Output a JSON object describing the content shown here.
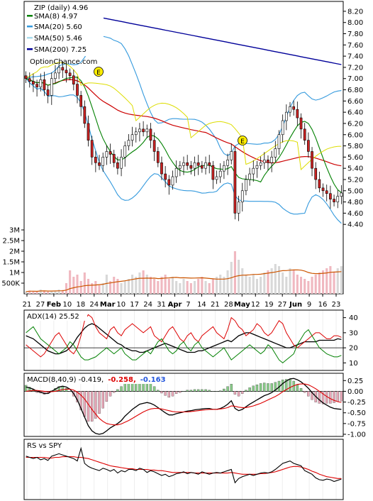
{
  "chart_data": [
    {
      "type": "candlestick",
      "panel": "price",
      "title": "ZIP (daily) 4.96",
      "watermark": "OptionChance.com",
      "ylim": [
        4.2,
        8.3
      ],
      "y_ticks": [
        "8.20",
        "8.00",
        "7.80",
        "7.60",
        "7.40",
        "7.20",
        "7.00",
        "6.80",
        "6.60",
        "6.40",
        "6.20",
        "6.00",
        "5.80",
        "5.60",
        "5.40",
        "5.20",
        "5.00",
        "4.80",
        "4.60",
        "4.40"
      ],
      "legend": [
        {
          "label": "SMA(8) 4.97",
          "color": "#008000"
        },
        {
          "label": "SMA(20) 5.60",
          "color": "#3399dd"
        },
        {
          "label": "SMA(50) 5.46",
          "color": "#aaddee"
        },
        {
          "label": "SMA(200) 7.25",
          "color": "#000099"
        }
      ],
      "earnings_markers": [
        "E",
        "E"
      ],
      "close": [
        7.0,
        6.95,
        6.9,
        6.85,
        6.98,
        6.8,
        6.7,
        7.0,
        7.1,
        7.2,
        7.15,
        7.1,
        7.05,
        6.9,
        6.7,
        6.5,
        6.2,
        5.9,
        5.6,
        5.5,
        5.45,
        5.6,
        5.7,
        5.65,
        5.5,
        5.4,
        5.6,
        5.8,
        5.9,
        6.0,
        6.05,
        6.1,
        6.05,
        6.1,
        5.9,
        5.7,
        5.5,
        5.3,
        5.2,
        5.1,
        5.25,
        5.4,
        5.45,
        5.5,
        5.45,
        5.4,
        5.5,
        5.45,
        5.4,
        5.5,
        5.45,
        5.2,
        5.25,
        5.35,
        5.45,
        5.55,
        5.7,
        4.6,
        4.8,
        5.0,
        5.2,
        5.3,
        5.4,
        5.45,
        5.5,
        5.55,
        5.5,
        5.6,
        5.75,
        6.0,
        6.25,
        6.4,
        6.5,
        6.45,
        6.3,
        6.1,
        5.9,
        5.7,
        5.4,
        5.2,
        5.05,
        5.0,
        4.95,
        4.85,
        4.8,
        4.9,
        4.96
      ]
    },
    {
      "type": "bar",
      "panel": "volume",
      "y_ticks": [
        "3M",
        "2.5M",
        "2M",
        "1.5M",
        "1M",
        "500K"
      ],
      "ylim": [
        0,
        3.2
      ],
      "values": [
        0.1,
        0.15,
        0.12,
        0.1,
        0.2,
        0.15,
        0.1,
        0.12,
        0.15,
        0.2,
        0.18,
        0.5,
        1.1,
        0.8,
        0.9,
        0.6,
        1.0,
        0.7,
        0.5,
        0.6,
        0.4,
        0.5,
        0.9,
        0.6,
        0.8,
        0.7,
        0.5,
        0.6,
        0.7,
        0.9,
        0.8,
        1.0,
        1.1,
        0.9,
        0.8,
        0.7,
        0.6,
        0.8,
        0.9,
        0.7,
        0.8,
        0.6,
        0.5,
        0.7,
        0.6,
        0.5,
        0.6,
        0.7,
        0.8,
        0.6,
        0.5,
        0.7,
        0.8,
        0.9,
        0.8,
        1.1,
        1.5,
        2.0,
        1.6,
        1.2,
        0.9,
        0.8,
        0.9,
        0.7,
        0.8,
        1.0,
        1.1,
        1.2,
        1.4,
        1.3,
        1.0,
        0.8,
        1.2,
        1.1,
        0.9,
        0.8,
        0.7,
        0.6,
        0.8,
        0.9,
        1.0,
        1.1,
        1.2,
        1.3,
        1.0,
        1.2,
        1.3
      ],
      "avg_line_color": "#cc5500"
    },
    {
      "type": "line",
      "panel": "adx",
      "label": "ADX(14) 25.52",
      "y_ticks": [
        "40",
        "30",
        "20",
        "10"
      ],
      "ylim": [
        5,
        45
      ],
      "series": [
        {
          "color": "#000000",
          "values": [
            28,
            27,
            26,
            24,
            22,
            20,
            18,
            17,
            16,
            16,
            17,
            18,
            20,
            23,
            27,
            30,
            33,
            35,
            36,
            35,
            33,
            31,
            29,
            27,
            25,
            23,
            22,
            20,
            19,
            18,
            18,
            17,
            17,
            18,
            19,
            20,
            21,
            22,
            23,
            22,
            21,
            20,
            19,
            18,
            17,
            17,
            17,
            18,
            18,
            19,
            20,
            21,
            22,
            23,
            24,
            25,
            24,
            26,
            28,
            29,
            30,
            30,
            29,
            28,
            27,
            26,
            25,
            24,
            23,
            22,
            21,
            20,
            20,
            21,
            22,
            23,
            24,
            24,
            24,
            24,
            25,
            25,
            25,
            25,
            25,
            26,
            25.5
          ]
        },
        {
          "color": "#dd0000",
          "values": [
            22,
            20,
            18,
            16,
            14,
            16,
            20,
            24,
            28,
            30,
            26,
            22,
            18,
            16,
            20,
            28,
            38,
            42,
            40,
            34,
            30,
            28,
            26,
            32,
            34,
            30,
            28,
            32,
            34,
            36,
            34,
            32,
            30,
            32,
            34,
            28,
            26,
            24,
            28,
            32,
            34,
            30,
            26,
            24,
            28,
            30,
            26,
            24,
            28,
            30,
            32,
            34,
            30,
            28,
            26,
            32,
            40,
            38,
            34,
            32,
            28,
            30,
            32,
            36,
            34,
            30,
            28,
            30,
            34,
            38,
            36,
            30,
            26,
            22,
            20,
            22,
            24,
            26,
            28,
            30,
            30,
            28,
            26,
            26,
            28,
            28,
            27
          ]
        },
        {
          "color": "#008000",
          "values": [
            30,
            32,
            34,
            30,
            26,
            24,
            22,
            20,
            18,
            16,
            18,
            20,
            24,
            22,
            18,
            14,
            12,
            12,
            13,
            14,
            16,
            18,
            20,
            18,
            16,
            18,
            20,
            16,
            14,
            12,
            12,
            14,
            16,
            18,
            16,
            20,
            24,
            26,
            22,
            18,
            16,
            18,
            22,
            24,
            20,
            18,
            22,
            24,
            20,
            18,
            16,
            14,
            16,
            18,
            20,
            16,
            12,
            14,
            16,
            18,
            20,
            22,
            20,
            18,
            16,
            18,
            22,
            20,
            16,
            12,
            10,
            12,
            14,
            16,
            22,
            26,
            30,
            32,
            28,
            24,
            20,
            18,
            16,
            15,
            14,
            14,
            15
          ]
        }
      ]
    },
    {
      "type": "line",
      "panel": "macd",
      "label_prefix": "MACD(8,40,9) -0.419,",
      "label_signal": "-0.258,",
      "label_hist": "-0.163",
      "y_ticks": [
        "0.25",
        "0.00",
        "-0.25",
        "-0.50",
        "-0.75",
        "-1.00"
      ],
      "ylim": [
        -1.05,
        0.42
      ],
      "macd": [
        0.1,
        0.08,
        0.05,
        0.0,
        -0.02,
        -0.05,
        -0.05,
        0.0,
        0.05,
        0.1,
        0.12,
        0.1,
        0.05,
        -0.05,
        -0.2,
        -0.4,
        -0.6,
        -0.8,
        -0.92,
        -0.98,
        -1.0,
        -0.98,
        -0.92,
        -0.85,
        -0.8,
        -0.75,
        -0.68,
        -0.58,
        -0.5,
        -0.42,
        -0.36,
        -0.3,
        -0.28,
        -0.26,
        -0.28,
        -0.32,
        -0.38,
        -0.44,
        -0.5,
        -0.55,
        -0.55,
        -0.52,
        -0.5,
        -0.48,
        -0.46,
        -0.45,
        -0.43,
        -0.42,
        -0.41,
        -0.4,
        -0.4,
        -0.42,
        -0.42,
        -0.4,
        -0.36,
        -0.3,
        -0.22,
        -0.4,
        -0.45,
        -0.42,
        -0.36,
        -0.3,
        -0.25,
        -0.2,
        -0.15,
        -0.1,
        -0.07,
        -0.03,
        0.03,
        0.1,
        0.18,
        0.24,
        0.29,
        0.3,
        0.27,
        0.22,
        0.15,
        0.07,
        -0.03,
        -0.12,
        -0.2,
        -0.27,
        -0.32,
        -0.37,
        -0.4,
        -0.41,
        -0.419
      ],
      "signal": [
        0.0,
        0.01,
        0.02,
        0.02,
        0.01,
        0.0,
        -0.01,
        -0.01,
        0.0,
        0.02,
        0.04,
        0.05,
        0.05,
        0.03,
        -0.02,
        -0.09,
        -0.18,
        -0.3,
        -0.42,
        -0.53,
        -0.63,
        -0.7,
        -0.75,
        -0.77,
        -0.78,
        -0.78,
        -0.76,
        -0.72,
        -0.68,
        -0.63,
        -0.58,
        -0.53,
        -0.48,
        -0.44,
        -0.41,
        -0.4,
        -0.4,
        -0.41,
        -0.43,
        -0.45,
        -0.47,
        -0.48,
        -0.48,
        -0.48,
        -0.48,
        -0.47,
        -0.46,
        -0.45,
        -0.44,
        -0.43,
        -0.42,
        -0.42,
        -0.42,
        -0.41,
        -0.4,
        -0.38,
        -0.34,
        -0.35,
        -0.37,
        -0.38,
        -0.38,
        -0.36,
        -0.34,
        -0.31,
        -0.28,
        -0.24,
        -0.2,
        -0.16,
        -0.12,
        -0.07,
        -0.01,
        0.04,
        0.09,
        0.13,
        0.16,
        0.17,
        0.17,
        0.15,
        0.11,
        0.06,
        0.0,
        -0.06,
        -0.12,
        -0.17,
        -0.21,
        -0.24,
        -0.258
      ]
    },
    {
      "type": "line",
      "panel": "rs",
      "label": "RS vs SPY",
      "ylim": [
        0.0,
        1.0
      ],
      "rs": [
        0.72,
        0.7,
        0.68,
        0.7,
        0.66,
        0.68,
        0.65,
        0.72,
        0.74,
        0.76,
        0.74,
        0.72,
        0.7,
        0.68,
        0.64,
        0.85,
        0.6,
        0.55,
        0.52,
        0.5,
        0.48,
        0.52,
        0.5,
        0.47,
        0.5,
        0.44,
        0.48,
        0.46,
        0.5,
        0.5,
        0.48,
        0.52,
        0.5,
        0.45,
        0.48,
        0.46,
        0.43,
        0.4,
        0.42,
        0.38,
        0.4,
        0.43,
        0.44,
        0.46,
        0.43,
        0.45,
        0.44,
        0.42,
        0.46,
        0.44,
        0.42,
        0.44,
        0.45,
        0.44,
        0.46,
        0.48,
        0.5,
        0.28,
        0.35,
        0.38,
        0.4,
        0.42,
        0.4,
        0.42,
        0.44,
        0.45,
        0.44,
        0.46,
        0.5,
        0.55,
        0.6,
        0.62,
        0.64,
        0.6,
        0.58,
        0.56,
        0.48,
        0.45,
        0.42,
        0.36,
        0.33,
        0.32,
        0.34,
        0.33,
        0.3,
        0.32,
        0.34
      ],
      "rs_ma": [
        0.7,
        0.7,
        0.7,
        0.7,
        0.7,
        0.7,
        0.69,
        0.69,
        0.7,
        0.7,
        0.71,
        0.71,
        0.71,
        0.71,
        0.7,
        0.7,
        0.69,
        0.68,
        0.66,
        0.64,
        0.62,
        0.6,
        0.58,
        0.56,
        0.55,
        0.54,
        0.53,
        0.52,
        0.51,
        0.51,
        0.5,
        0.5,
        0.5,
        0.5,
        0.49,
        0.49,
        0.48,
        0.48,
        0.47,
        0.46,
        0.45,
        0.45,
        0.45,
        0.45,
        0.45,
        0.45,
        0.44,
        0.44,
        0.44,
        0.44,
        0.44,
        0.44,
        0.44,
        0.44,
        0.44,
        0.44,
        0.45,
        0.44,
        0.43,
        0.42,
        0.42,
        0.42,
        0.42,
        0.42,
        0.43,
        0.43,
        0.44,
        0.45,
        0.46,
        0.48,
        0.5,
        0.52,
        0.54,
        0.55,
        0.55,
        0.54,
        0.52,
        0.5,
        0.47,
        0.45,
        0.42,
        0.4,
        0.38,
        0.37,
        0.36,
        0.35,
        0.35
      ]
    },
    {
      "type": "axis",
      "x_ticks": [
        "21",
        "27",
        "Feb",
        "10",
        "18",
        "24",
        "Mar",
        "10",
        "17",
        "24",
        "31",
        "Apr",
        "7",
        "14",
        "21",
        "28",
        "May",
        "12",
        "19",
        "27",
        "Jun",
        "9",
        "16",
        "23"
      ]
    }
  ]
}
